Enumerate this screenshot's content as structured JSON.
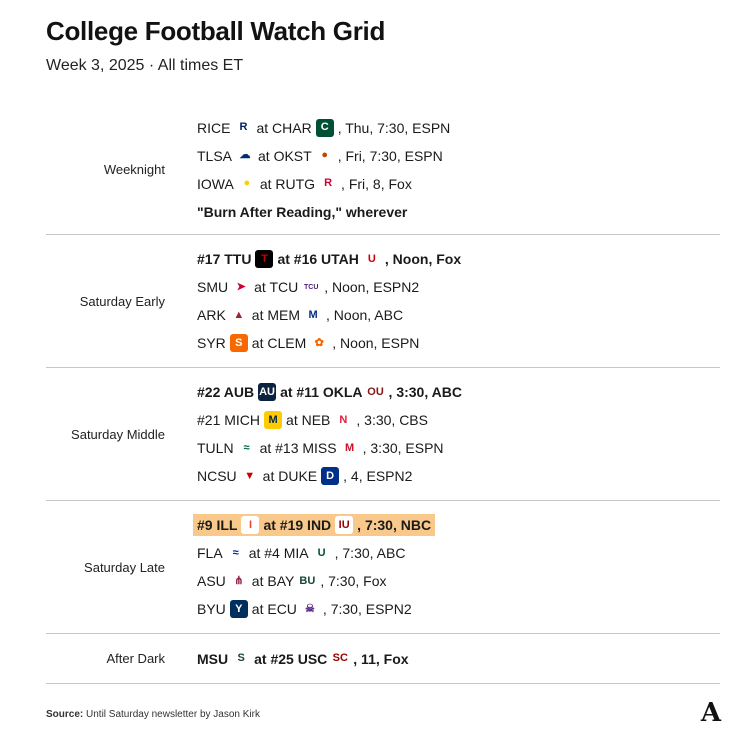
{
  "title": "College Football Watch Grid",
  "subtitle": "Week 3, 2025 · All times ET",
  "source_label": "Source:",
  "source_text": "Until Saturday newsletter by Jason Kirk",
  "logo": "A",
  "chart_data": {
    "type": "table",
    "title": "College Football Watch Grid",
    "subtitle": "Week 3, 2025 · All times ET",
    "sections": [
      {
        "label": "Weeknight",
        "games": [
          {
            "away": "RICE",
            "away_icon": "rice-owls-icon",
            "home": "at CHAR",
            "home_icon": "charlotte-icon",
            "info": ", Thu, 7:30, ESPN",
            "bold": false
          },
          {
            "away": "TLSA",
            "away_icon": "tulsa-icon",
            "home": "at OKST",
            "home_icon": "oklahoma-state-icon",
            "info": ", Fri, 7:30, ESPN",
            "bold": false
          },
          {
            "away": "IOWA",
            "away_icon": "iowa-hawkeye-icon",
            "home": "at RUTG",
            "home_icon": "rutgers-icon",
            "info": ", Fri, 8, Fox",
            "bold": false
          },
          {
            "text": "\"Burn After Reading,\" wherever",
            "bold": true
          }
        ]
      },
      {
        "label": "Saturday Early",
        "games": [
          {
            "away": "#17 TTU",
            "away_icon": "texas-tech-icon",
            "home": "at #16 UTAH",
            "home_icon": "utah-icon",
            "info": ", Noon, Fox",
            "bold": true
          },
          {
            "away": "SMU",
            "away_icon": "smu-mustang-icon",
            "home": "at TCU",
            "home_icon": "tcu-icon",
            "info": ", Noon, ESPN2",
            "bold": false
          },
          {
            "away": "ARK",
            "away_icon": "arkansas-razorback-icon",
            "home": "at MEM",
            "home_icon": "memphis-tiger-icon",
            "info": ", Noon, ABC",
            "bold": false
          },
          {
            "away": "SYR",
            "away_icon": "syracuse-icon",
            "home": "at CLEM",
            "home_icon": "clemson-paw-icon",
            "info": ", Noon, ESPN",
            "bold": false
          }
        ]
      },
      {
        "label": "Saturday Middle",
        "games": [
          {
            "away": "#22 AUB",
            "away_icon": "auburn-icon",
            "home": "at #11 OKLA",
            "home_icon": "oklahoma-icon",
            "info": ", 3:30, ABC",
            "bold": true
          },
          {
            "away": "#21 MICH",
            "away_icon": "michigan-icon",
            "home": "at NEB",
            "home_icon": "nebraska-icon",
            "info": ", 3:30, CBS",
            "bold": false
          },
          {
            "away": "TULN",
            "away_icon": "tulane-icon",
            "home": "at #13 MISS",
            "home_icon": "ole-miss-icon",
            "info": ", 3:30, ESPN",
            "bold": false
          },
          {
            "away": "NCSU",
            "away_icon": "nc-state-wolf-icon",
            "home": "at DUKE",
            "home_icon": "duke-icon",
            "info": ", 4, ESPN2",
            "bold": false
          }
        ]
      },
      {
        "label": "Saturday Late",
        "games": [
          {
            "away": "#9 ILL",
            "away_icon": "illinois-icon",
            "home": "at #19 IND",
            "home_icon": "indiana-icon",
            "info": ", 7:30, NBC",
            "bold": true,
            "highlight": true
          },
          {
            "away": "FLA",
            "away_icon": "florida-gator-icon",
            "home": "at #4 MIA",
            "home_icon": "miami-icon",
            "info": ", 7:30, ABC",
            "bold": false
          },
          {
            "away": "ASU",
            "away_icon": "arizona-state-icon",
            "home": "at BAY",
            "home_icon": "baylor-icon",
            "info": ", 7:30, Fox",
            "bold": false
          },
          {
            "away": "BYU",
            "away_icon": "byu-icon",
            "home": "at ECU",
            "home_icon": "ecu-pirate-icon",
            "info": ", 7:30, ESPN2",
            "bold": false
          }
        ]
      },
      {
        "label": "After Dark",
        "games": [
          {
            "away": "MSU",
            "away_icon": "michigan-state-icon",
            "home": "at #25 USC",
            "home_icon": "usc-icon",
            "info": ", 11, Fox",
            "bold": true
          }
        ]
      }
    ]
  },
  "icons": {
    "rice-owls-icon": {
      "glyph": "R",
      "bg": "#ffffff",
      "fg": "#00205b"
    },
    "charlotte-icon": {
      "glyph": "C",
      "bg": "#005035",
      "fg": "#ffffff"
    },
    "tulsa-icon": {
      "glyph": "☁",
      "bg": "#ffffff",
      "fg": "#002d72"
    },
    "oklahoma-state-icon": {
      "glyph": "●",
      "bg": "#ffffff",
      "fg": "#c64600"
    },
    "iowa-hawkeye-icon": {
      "glyph": "●",
      "bg": "#ffffff",
      "fg": "#ffcd00"
    },
    "rutgers-icon": {
      "glyph": "R",
      "bg": "#ffffff",
      "fg": "#cc0033"
    },
    "texas-tech-icon": {
      "glyph": "T",
      "bg": "#000000",
      "fg": "#cc0000"
    },
    "utah-icon": {
      "glyph": "U",
      "bg": "#ffffff",
      "fg": "#cc0000"
    },
    "smu-mustang-icon": {
      "glyph": "➤",
      "bg": "#ffffff",
      "fg": "#cc0035"
    },
    "tcu-icon": {
      "glyph": "TCU",
      "bg": "#ffffff",
      "fg": "#4d1979"
    },
    "arkansas-razorback-icon": {
      "glyph": "▲",
      "bg": "#ffffff",
      "fg": "#9d2235"
    },
    "memphis-tiger-icon": {
      "glyph": "M",
      "bg": "#ffffff",
      "fg": "#003087"
    },
    "syracuse-icon": {
      "glyph": "S",
      "bg": "#f76900",
      "fg": "#ffffff"
    },
    "clemson-paw-icon": {
      "glyph": "✿",
      "bg": "#ffffff",
      "fg": "#f56600"
    },
    "auburn-icon": {
      "glyph": "AU",
      "bg": "#0c2340",
      "fg": "#ffffff"
    },
    "oklahoma-icon": {
      "glyph": "OU",
      "bg": "#ffffff",
      "fg": "#841617"
    },
    "michigan-icon": {
      "glyph": "M",
      "bg": "#ffcb05",
      "fg": "#00274c"
    },
    "nebraska-icon": {
      "glyph": "N",
      "bg": "#ffffff",
      "fg": "#e41c38"
    },
    "tulane-icon": {
      "glyph": "≈",
      "bg": "#ffffff",
      "fg": "#006747"
    },
    "ole-miss-icon": {
      "glyph": "M",
      "bg": "#ffffff",
      "fg": "#ce1126"
    },
    "nc-state-wolf-icon": {
      "glyph": "▼",
      "bg": "#ffffff",
      "fg": "#cc0000"
    },
    "duke-icon": {
      "glyph": "D",
      "bg": "#003087",
      "fg": "#ffffff"
    },
    "illinois-icon": {
      "glyph": "I",
      "bg": "#ffffff",
      "fg": "#e84a27"
    },
    "indiana-icon": {
      "glyph": "IU",
      "bg": "#ffffff",
      "fg": "#990000"
    },
    "florida-gator-icon": {
      "glyph": "≈",
      "bg": "#ffffff",
      "fg": "#0021a5"
    },
    "miami-icon": {
      "glyph": "U",
      "bg": "#ffffff",
      "fg": "#005030"
    },
    "arizona-state-icon": {
      "glyph": "⋔",
      "bg": "#ffffff",
      "fg": "#8c1d40"
    },
    "baylor-icon": {
      "glyph": "BU",
      "bg": "#ffffff",
      "fg": "#154734"
    },
    "byu-icon": {
      "glyph": "Y",
      "bg": "#002e5d",
      "fg": "#ffffff"
    },
    "ecu-pirate-icon": {
      "glyph": "☠",
      "bg": "#ffffff",
      "fg": "#592a8a"
    },
    "michigan-state-icon": {
      "glyph": "S",
      "bg": "#ffffff",
      "fg": "#18453b"
    },
    "usc-icon": {
      "glyph": "SC",
      "bg": "#ffffff",
      "fg": "#990000"
    }
  }
}
